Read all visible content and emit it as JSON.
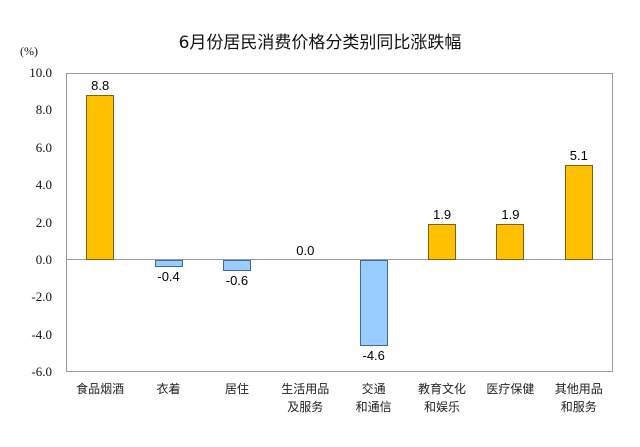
{
  "chart_data": {
    "type": "bar",
    "title": "6月份居民消费价格分类别同比涨跌幅",
    "xlabel": "",
    "ylabel": "(%)",
    "ylim": [
      -6.0,
      10.0
    ],
    "yticks": [
      "10.0",
      "8.0",
      "6.0",
      "4.0",
      "2.0",
      "0.0",
      "-2.0",
      "-4.0",
      "-6.0"
    ],
    "grid": false,
    "legend": null,
    "categories": [
      "食品烟酒",
      "衣着",
      "居住",
      "生活用品\n及服务",
      "交通\n和通信",
      "教育文化\n和娱乐",
      "医疗保健",
      "其他用品\n和服务"
    ],
    "values": [
      8.8,
      -0.4,
      -0.6,
      0.0,
      -4.6,
      1.9,
      1.9,
      5.1
    ],
    "value_labels": [
      "8.8",
      "-0.4",
      "-0.6",
      "0.0",
      "-4.6",
      "1.9",
      "1.9",
      "5.1"
    ],
    "colors": {
      "positive": "#FFC000",
      "negative": "#99CCFF"
    }
  }
}
